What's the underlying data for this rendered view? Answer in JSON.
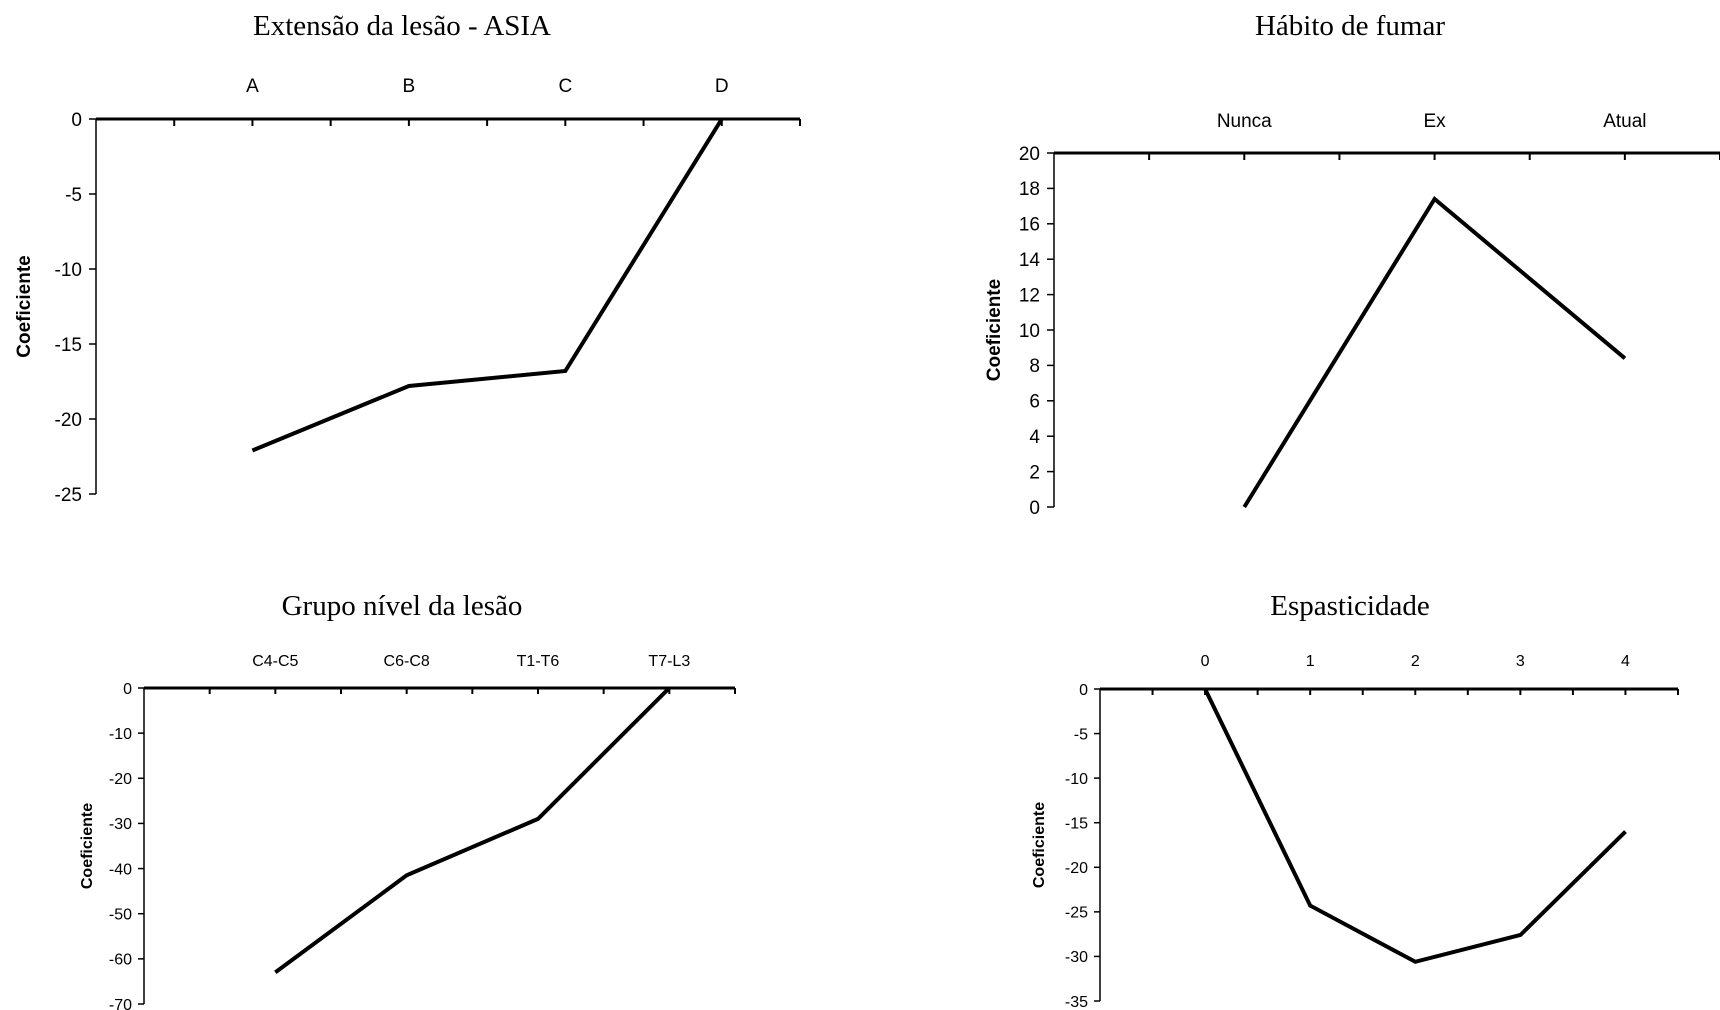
{
  "chart_data": [
    {
      "type": "line",
      "title": "Extensão da lesão - ASIA",
      "ylabel": "Coeficiente",
      "xlabel": "",
      "categories": [
        "A",
        "B",
        "C",
        "D"
      ],
      "values": [
        -22.1,
        -17.8,
        -16.8,
        0
      ],
      "ylim": [
        -25,
        0
      ],
      "yticks": [
        0,
        -5,
        -10,
        -15,
        -20,
        -25
      ],
      "x_axis_position": "top",
      "grid": false,
      "legend": "none",
      "color": "#000000"
    },
    {
      "type": "line",
      "title": "Hábito de fumar",
      "ylabel": "Coeficiente",
      "xlabel": "",
      "categories": [
        "Nunca",
        "Ex",
        "Atual"
      ],
      "values": [
        0,
        17.4,
        8.4
      ],
      "ylim": [
        0,
        20
      ],
      "yticks": [
        20,
        18,
        16,
        14,
        12,
        10,
        8,
        6,
        4,
        2,
        0
      ],
      "x_axis_position": "top",
      "grid": false,
      "legend": "none",
      "color": "#000000"
    },
    {
      "type": "line",
      "title": "Grupo nível da lesão",
      "ylabel": "Coeficiente",
      "xlabel": "",
      "categories": [
        "C4-C5",
        "C6-C8",
        "T1-T6",
        "T7-L3"
      ],
      "values": [
        -63,
        -41.5,
        -29,
        0
      ],
      "ylim": [
        -70,
        0
      ],
      "yticks": [
        0,
        -10,
        -20,
        -30,
        -40,
        -50,
        -60,
        -70
      ],
      "x_axis_position": "top",
      "grid": false,
      "legend": "none",
      "color": "#000000"
    },
    {
      "type": "line",
      "title": "Espasticidade",
      "ylabel": "Coeficiente",
      "xlabel": "",
      "categories": [
        "0",
        "1",
        "2",
        "3",
        "4"
      ],
      "values": [
        0,
        -24.3,
        -30.6,
        -27.6,
        -16
      ],
      "ylim": [
        -35,
        0
      ],
      "yticks": [
        0,
        -5,
        -10,
        -15,
        -20,
        -25,
        -30,
        -35
      ],
      "x_axis_position": "top",
      "grid": false,
      "legend": "none",
      "color": "#000000"
    }
  ]
}
